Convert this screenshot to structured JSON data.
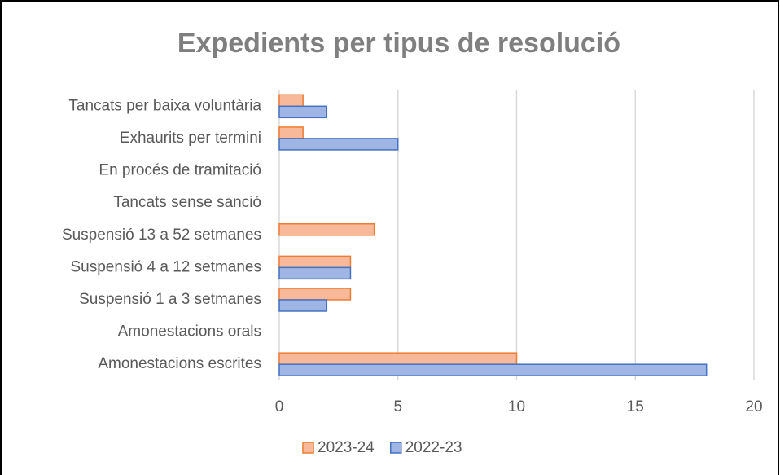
{
  "chart_data": {
    "type": "barh",
    "title": "Expedients per tipus de resolució",
    "categories": [
      "Tancats per baixa voluntària",
      "Exhaurits per termini",
      "En procés de tramitació",
      "Tancats sense sanció",
      "Suspensió 13 a 52 setmanes",
      "Suspensió 4 a 12 setmanes",
      "Suspensió 1 a 3 setmanes",
      "Amonestacions orals",
      "Amonestacions escrites"
    ],
    "series": [
      {
        "name": "2023-24",
        "color": "#f8b99a",
        "edgecolor": "#ed7d31",
        "values": [
          1,
          1,
          0,
          0,
          4,
          3,
          3,
          0,
          10
        ]
      },
      {
        "name": "2022-23",
        "color": "#9fb5e3",
        "edgecolor": "#4472c4",
        "values": [
          2,
          5,
          0,
          0,
          0,
          3,
          2,
          0,
          18
        ]
      }
    ],
    "xlim": [
      0,
      20
    ],
    "xticks": [
      0,
      5,
      10,
      15,
      20
    ],
    "grid": true,
    "legend": "bottom"
  }
}
